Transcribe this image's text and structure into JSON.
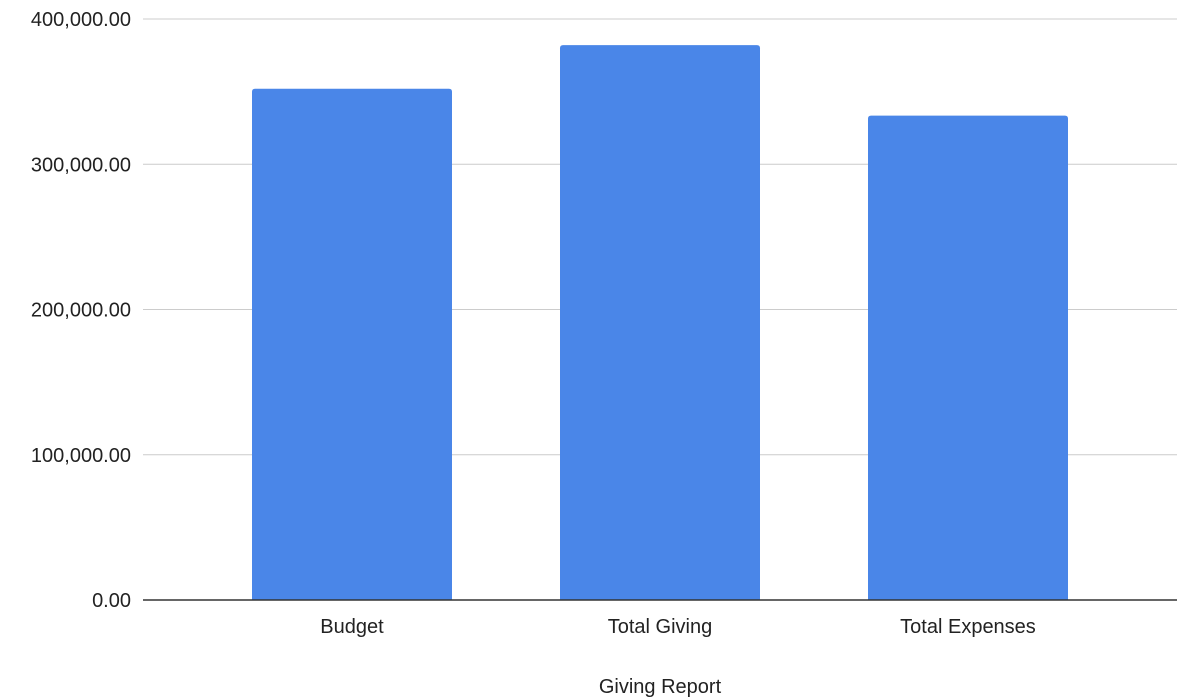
{
  "chart_data": {
    "type": "bar",
    "title": "",
    "xlabel": "Giving Report",
    "ylabel": "",
    "categories": [
      "Budget",
      "Total Giving",
      "Total Expenses"
    ],
    "values": [
      352000,
      382000,
      333500
    ],
    "ylim": [
      0,
      400000
    ],
    "yticks": [
      "0.00",
      "100,000.00",
      "200,000.00",
      "300,000.00",
      "400,000.00"
    ],
    "ytick_values": [
      0,
      100000,
      200000,
      300000,
      400000
    ],
    "grid": true,
    "legend": "none",
    "bar_color": "#4a86e8"
  }
}
